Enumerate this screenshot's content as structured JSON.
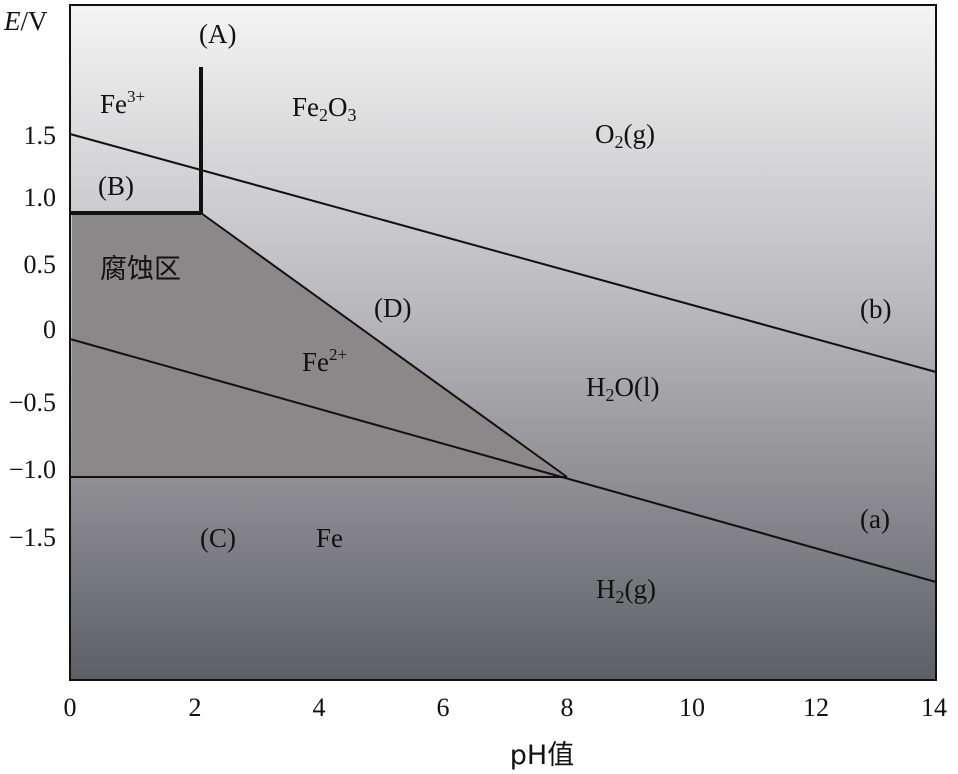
{
  "axis": {
    "y_label_italic": "E",
    "y_label_unit": "/V",
    "x_label": "pH值",
    "x_ticks": [
      "0",
      "2",
      "4",
      "6",
      "8",
      "10",
      "12",
      "14"
    ],
    "y_ticks": [
      "1.5",
      "1.0",
      "0.5",
      "0",
      "−0.5",
      "−1.0",
      "−1.5"
    ]
  },
  "labels": {
    "A": "(A)",
    "B": "(B)",
    "C": "(C)",
    "D": "(D)",
    "a": "(a)",
    "b": "(b)",
    "fe3": "Fe",
    "fe3_sup": "3+",
    "fe2o3_a": "Fe",
    "fe2o3_sub1": "2",
    "fe2o3_b": "O",
    "fe2o3_sub2": "3",
    "o2_a": "O",
    "o2_sub": "2",
    "o2_b": "(g)",
    "corrosion": "腐蚀区",
    "fe2": "Fe",
    "fe2_sup": "2+",
    "h2o_a": "H",
    "h2o_sub": "2",
    "h2o_b": "O(l)",
    "fe": "Fe",
    "h2_a": "H",
    "h2_sub": "2",
    "h2_b": "(g)"
  },
  "colors": {
    "bg_top": "#f4f4f4",
    "bg_bottom": "#5e5e66",
    "corrosion_fill": "#8a8888",
    "line": "#111111"
  }
}
